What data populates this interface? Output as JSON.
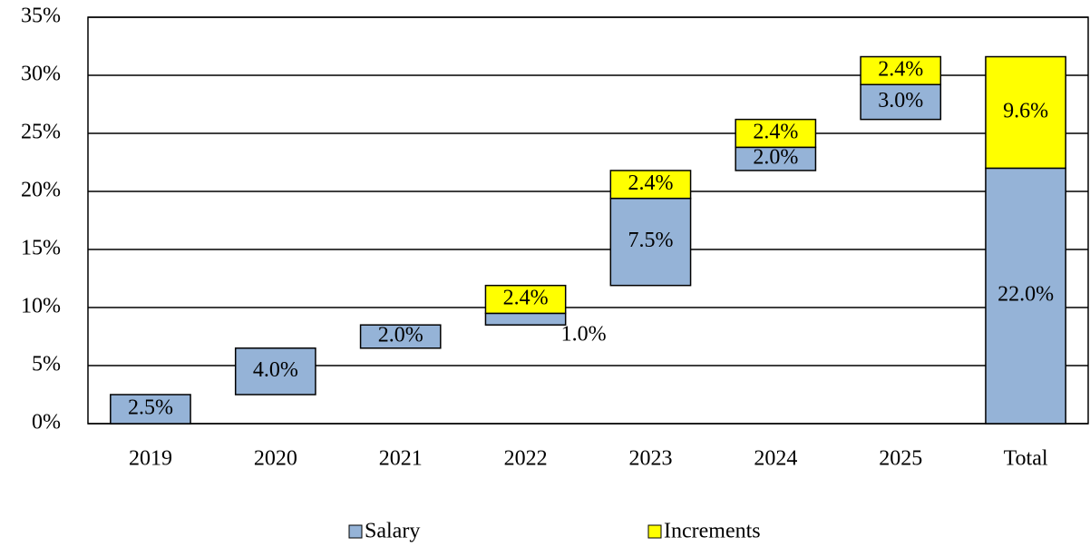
{
  "chart_data": {
    "type": "waterfall",
    "categories": [
      "2019",
      "2020",
      "2021",
      "2022",
      "2023",
      "2024",
      "2025",
      "Total"
    ],
    "series": [
      {
        "name": "Salary",
        "color": "#95b3d7",
        "values": [
          2.5,
          4.0,
          2.0,
          1.0,
          7.5,
          2.0,
          3.0,
          22.0
        ],
        "value_labels": [
          "2.5%",
          "4.0%",
          "2.0%",
          "1.0%",
          "7.5%",
          "2.0%",
          "3.0%",
          "22.0%"
        ]
      },
      {
        "name": "Increments",
        "color": "#ffff00",
        "values": [
          null,
          null,
          null,
          2.4,
          2.4,
          2.4,
          2.4,
          9.6
        ],
        "value_labels": [
          null,
          null,
          null,
          "2.4%",
          "2.4%",
          "2.4%",
          "2.4%",
          "9.6%"
        ]
      }
    ],
    "ylim": [
      0,
      35
    ],
    "yticks": [
      {
        "value": 0,
        "label": "0%"
      },
      {
        "value": 5,
        "label": "5%"
      },
      {
        "value": 10,
        "label": "10%"
      },
      {
        "value": 15,
        "label": "15%"
      },
      {
        "value": 20,
        "label": "20%"
      },
      {
        "value": 25,
        "label": "25%"
      },
      {
        "value": 30,
        "label": "30%"
      },
      {
        "value": 35,
        "label": "35%"
      }
    ],
    "grid": true,
    "legend": "bottom"
  }
}
